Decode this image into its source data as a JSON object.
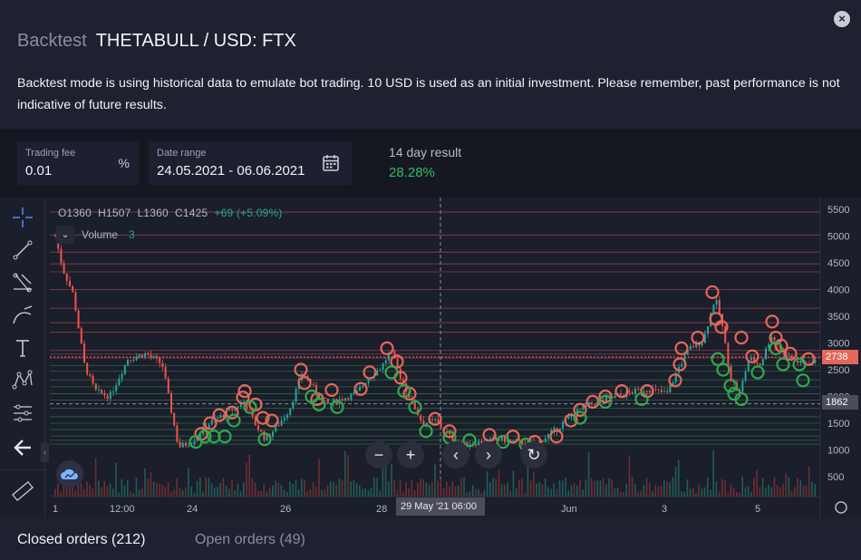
{
  "header": {
    "mode_label": "Backtest",
    "pair": "THETABULL / USD: FTX",
    "close": "×",
    "description": "Backtest mode is using historical data to emulate bot trading. 10 USD is used as an initial investment. Please remember, past performance is not indicative of future results."
  },
  "controls": {
    "trading_fee": {
      "label": "Trading fee",
      "value": "0.01",
      "unit": "%"
    },
    "date_range": {
      "label": "Date range",
      "value": "24.05.2021 - 06.06.2021"
    },
    "result": {
      "label": "14 day result",
      "value": "28.28%"
    }
  },
  "chart": {
    "ohlc": {
      "o": "O1360",
      "h": "H1507",
      "l": "L1360",
      "c": "C1425",
      "chg": "+69 (+5.09%)"
    },
    "volume": {
      "label": "Volume",
      "value": "3",
      "toggle": "⌄"
    },
    "price_ticks": [
      "5500",
      "5000",
      "4500",
      "4000",
      "3500",
      "3000",
      "2500",
      "2000",
      "1500",
      "1000",
      "500"
    ],
    "time_ticks": [
      "1",
      "12:00",
      "24",
      "26",
      "28",
      "Jun",
      "3",
      "5"
    ],
    "last_price": "2738",
    "crosshair_price": "1862",
    "crosshair_date": "29 May '21   06:00",
    "nav": {
      "zoom_out": "−",
      "zoom_in": "+",
      "back": "‹",
      "forward": "›",
      "reset": "↻"
    },
    "colors": {
      "up": "#26a69a",
      "down": "#ef5350",
      "buy": "#2fa84f",
      "sell": "#e5675b",
      "bg": "#1b1e2b"
    }
  },
  "tools": [
    "crosshair-icon",
    "trendline-icon",
    "fib-icon",
    "brush-icon",
    "text-icon",
    "pattern-icon",
    "measure-icon",
    "back-arrow-icon",
    "ruler-icon"
  ],
  "tabs": {
    "closed": "Closed orders (212)",
    "open": "Open orders (49)"
  }
}
